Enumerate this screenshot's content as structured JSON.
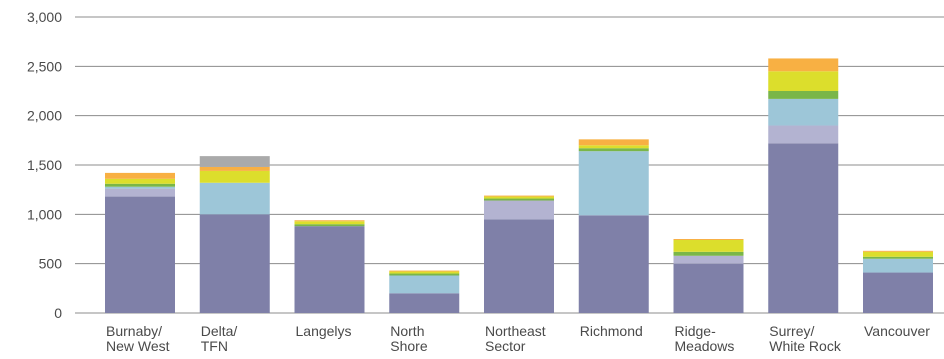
{
  "chart_data": {
    "type": "bar",
    "stacked": true,
    "title": "",
    "xlabel": "",
    "ylabel": "",
    "ylim": [
      0,
      3000
    ],
    "yticks": [
      0,
      500,
      1000,
      1500,
      2000,
      2500,
      3000
    ],
    "ytick_labels": [
      "0",
      "500",
      "1,000",
      "1,500",
      "2,000",
      "2,500",
      "3,000"
    ],
    "grid": true,
    "categories": [
      [
        "Burnaby/",
        "New West"
      ],
      [
        "Delta/",
        "TFN"
      ],
      [
        "Langelys"
      ],
      [
        "North",
        "Shore"
      ],
      [
        "Northeast",
        "Sector"
      ],
      [
        "Richmond"
      ],
      [
        "Ridge-",
        "Meadows"
      ],
      [
        "Surrey/",
        "White Rock"
      ],
      [
        "Vancouver"
      ]
    ],
    "series": [
      {
        "color": "#7f80a8",
        "values": [
          1180,
          1000,
          880,
          200,
          950,
          990,
          500,
          1720,
          410
        ]
      },
      {
        "color": "#b3b3d1",
        "values": [
          80,
          0,
          0,
          0,
          190,
          0,
          80,
          180,
          0
        ]
      },
      {
        "color": "#9dc6d8",
        "values": [
          20,
          320,
          0,
          180,
          0,
          650,
          0,
          270,
          140
        ]
      },
      {
        "color": "#7ab648",
        "values": [
          30,
          0,
          20,
          20,
          20,
          30,
          40,
          80,
          20
        ]
      },
      {
        "color": "#dcde2c",
        "values": [
          50,
          120,
          30,
          20,
          20,
          30,
          120,
          200,
          50
        ]
      },
      {
        "color": "#f8b043",
        "values": [
          60,
          40,
          10,
          10,
          10,
          60,
          10,
          130,
          10
        ]
      },
      {
        "color": "#aaaaaa",
        "values": [
          0,
          110,
          0,
          0,
          0,
          0,
          0,
          0,
          0
        ]
      }
    ]
  }
}
